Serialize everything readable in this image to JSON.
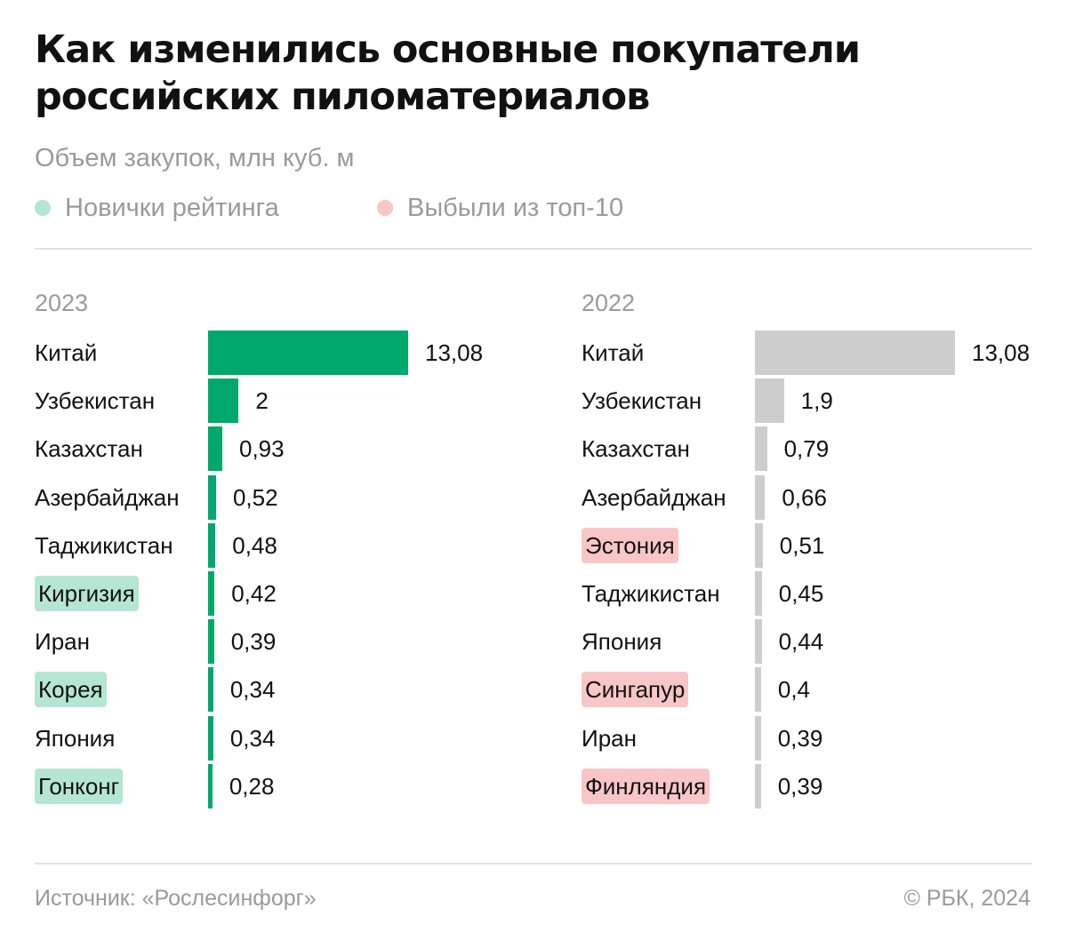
{
  "header": {
    "title": "Как изменились основные покупатели российских пиломатериалов",
    "subtitle": "Объем закупок, млн куб. м"
  },
  "legend": {
    "new_label": "Новички рейтинга",
    "out_label": "Выбыли из топ-10"
  },
  "colors": {
    "bar_2023": "#00a86b",
    "bar_2022": "#cdcdcd",
    "new_tag": "#b5e6d2",
    "new_dot": "#b5e6d2",
    "out_tag": "#f8c6c6",
    "out_dot": "#f8c6c6"
  },
  "footer": {
    "source": "Источник: «Рослесинфорг»",
    "copyright": "© РБК, 2024"
  },
  "chart_data": [
    {
      "type": "bar",
      "orientation": "horizontal",
      "year_label": "2023",
      "xlim": [
        0,
        13.08
      ],
      "rows": [
        {
          "name": "Китай",
          "value": 13.08,
          "label": "13,08",
          "tag": null
        },
        {
          "name": "Узбекистан",
          "value": 2,
          "label": "2",
          "tag": null
        },
        {
          "name": "Казахстан",
          "value": 0.93,
          "label": "0,93",
          "tag": null
        },
        {
          "name": "Азербайджан",
          "value": 0.52,
          "label": "0,52",
          "tag": null
        },
        {
          "name": "Таджикистан",
          "value": 0.48,
          "label": "0,48",
          "tag": null
        },
        {
          "name": "Киргизия",
          "value": 0.42,
          "label": "0,42",
          "tag": "new"
        },
        {
          "name": "Иран",
          "value": 0.39,
          "label": "0,39",
          "tag": null
        },
        {
          "name": "Корея",
          "value": 0.34,
          "label": "0,34",
          "tag": "new"
        },
        {
          "name": "Япония",
          "value": 0.34,
          "label": "0,34",
          "tag": null
        },
        {
          "name": "Гонконг",
          "value": 0.28,
          "label": "0,28",
          "tag": "new"
        }
      ]
    },
    {
      "type": "bar",
      "orientation": "horizontal",
      "year_label": "2022",
      "xlim": [
        0,
        13.08
      ],
      "rows": [
        {
          "name": "Китай",
          "value": 13.08,
          "label": "13,08",
          "tag": null
        },
        {
          "name": "Узбекистан",
          "value": 1.9,
          "label": "1,9",
          "tag": null
        },
        {
          "name": "Казахстан",
          "value": 0.79,
          "label": "0,79",
          "tag": null
        },
        {
          "name": "Азербайджан",
          "value": 0.66,
          "label": "0,66",
          "tag": null
        },
        {
          "name": "Эстония",
          "value": 0.51,
          "label": "0,51",
          "tag": "out"
        },
        {
          "name": "Таджикистан",
          "value": 0.45,
          "label": "0,45",
          "tag": null
        },
        {
          "name": "Япония",
          "value": 0.44,
          "label": "0,44",
          "tag": null
        },
        {
          "name": "Сингапур",
          "value": 0.4,
          "label": "0,4",
          "tag": "out"
        },
        {
          "name": "Иран",
          "value": 0.39,
          "label": "0,39",
          "tag": null
        },
        {
          "name": "Финляндия",
          "value": 0.39,
          "label": "0,39",
          "tag": "out"
        }
      ]
    }
  ]
}
